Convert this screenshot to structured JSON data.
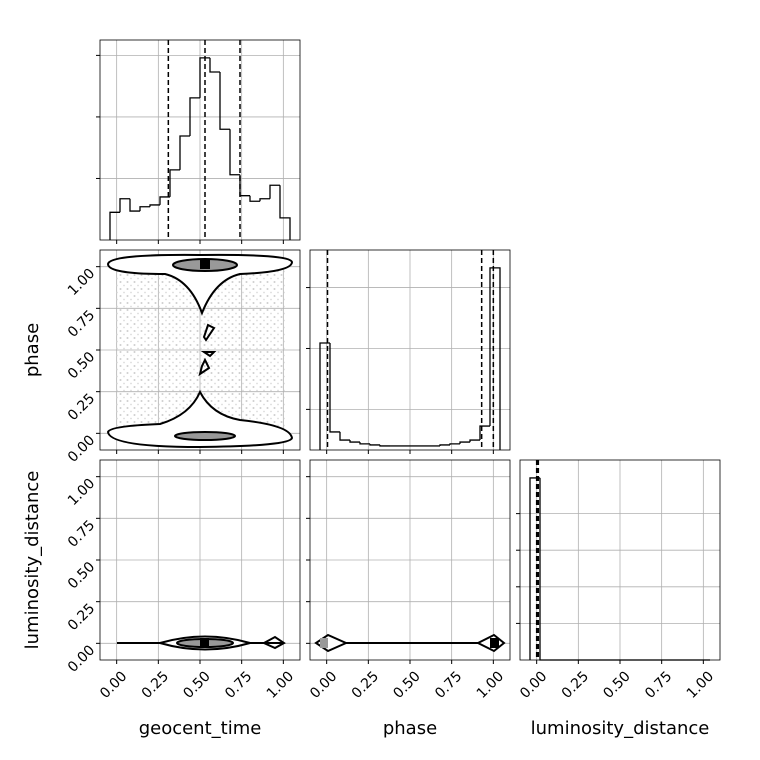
{
  "chart_data": {
    "type": "corner",
    "grid": true,
    "parameters": [
      {
        "name": "geocent_time",
        "lim": [
          -0.1,
          1.1
        ],
        "ticks": [
          {
            "value": 0,
            "label": "0.00"
          },
          {
            "value": 0.25,
            "label": "0.25"
          },
          {
            "value": 0.5,
            "label": "0.50"
          },
          {
            "value": 0.75,
            "label": "0.75"
          },
          {
            "value": 1,
            "label": "1.00"
          }
        ]
      },
      {
        "name": "phase",
        "lim": [
          -0.1,
          1.1
        ],
        "ticks": [
          {
            "value": 0,
            "label": "0.00"
          },
          {
            "value": 0.25,
            "label": "0.25"
          },
          {
            "value": 0.5,
            "label": "0.50"
          },
          {
            "value": 0.75,
            "label": "0.75"
          },
          {
            "value": 1,
            "label": "1.00"
          }
        ]
      },
      {
        "name": "luminosity_distance",
        "lim": [
          -0.1,
          1.1
        ],
        "ticks": [
          {
            "value": 0,
            "label": "0.00"
          },
          {
            "value": 0.25,
            "label": "0.25"
          },
          {
            "value": 0.5,
            "label": "0.50"
          },
          {
            "value": 0.75,
            "label": "0.75"
          },
          {
            "value": 1,
            "label": "1.00"
          }
        ]
      }
    ],
    "histograms": [
      {
        "bins": [
          -0.04,
          0.02,
          0.08,
          0.14,
          0.2,
          0.26,
          0.32,
          0.38,
          0.44,
          0.5,
          0.56,
          0.62,
          0.68,
          0.74,
          0.8,
          0.86,
          0.92,
          0.98,
          1.04
        ],
        "counts": [
          45,
          67,
          47,
          54,
          57,
          70,
          114,
          169,
          231,
          296,
          273,
          180,
          106,
          72,
          63,
          67,
          89,
          36
        ],
        "ylim": [
          0,
          325
        ],
        "yticks": [
          100,
          200,
          300
        ],
        "quantiles": [
          0.31,
          0.53,
          0.74
        ]
      },
      {
        "bins": [
          -0.04,
          0.02,
          0.08,
          0.14,
          0.2,
          0.26,
          0.32,
          0.38,
          0.44,
          0.5,
          0.56,
          0.62,
          0.68,
          0.74,
          0.8,
          0.86,
          0.92,
          0.98,
          1.04
        ],
        "counts": [
          5270,
          890,
          490,
          390,
          300,
          250,
          200,
          200,
          200,
          200,
          200,
          200,
          250,
          300,
          390,
          490,
          1180,
          8970
        ],
        "ylim": [
          0,
          9850
        ],
        "yticks": [
          2000,
          5000,
          8000
        ],
        "quantiles": [
          0.005,
          0.93,
          1.0
        ]
      },
      {
        "bins": [
          -0.04,
          0.02,
          0.08,
          0.14,
          0.2,
          0.26,
          0.32,
          0.38,
          0.44,
          0.5,
          0.56,
          0.62,
          0.68,
          0.74,
          0.8,
          0.86,
          0.92,
          0.98,
          1.04
        ],
        "counts": [
          9950,
          0,
          0,
          0,
          0,
          0,
          0,
          0,
          0,
          0,
          0,
          0,
          0,
          0,
          0,
          0,
          0,
          0
        ],
        "ylim": [
          0,
          10930
        ],
        "yticks": [
          2000,
          4000,
          6000,
          8000
        ],
        "quantiles": [
          0.0,
          0.003,
          0.01
        ]
      }
    ]
  }
}
